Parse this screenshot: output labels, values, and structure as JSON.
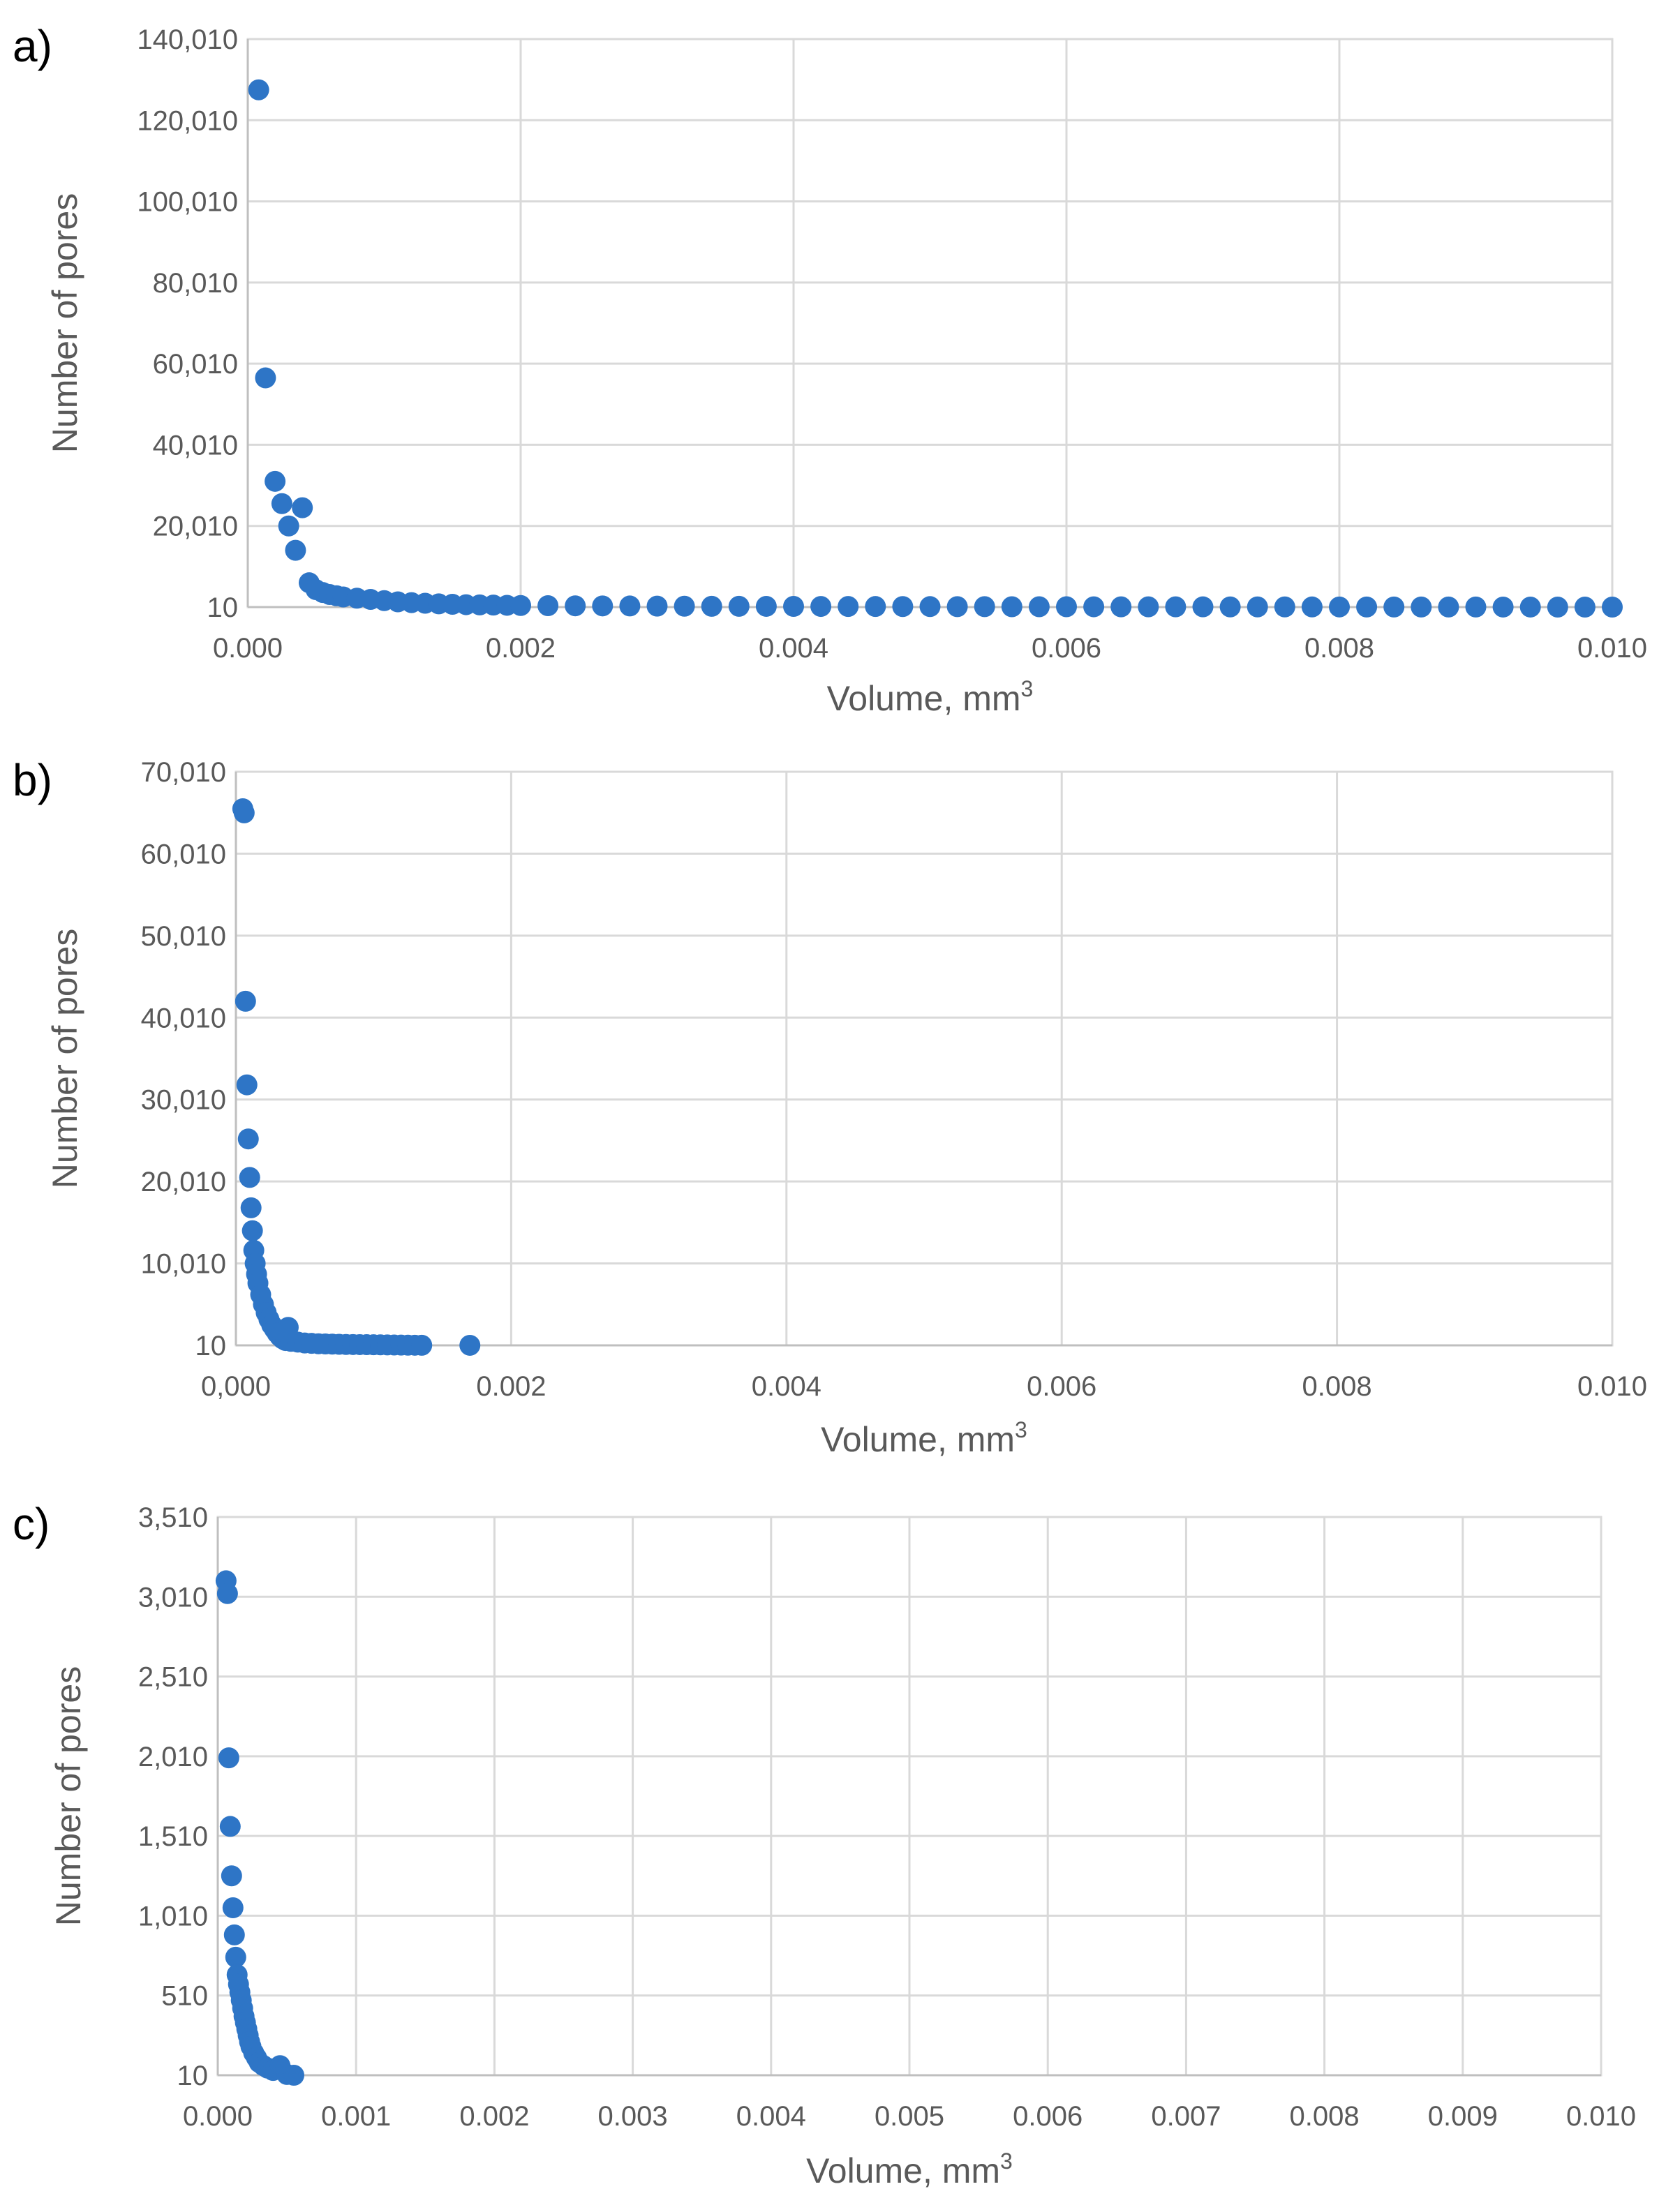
{
  "chart_data": [
    {
      "panel_label": "a)",
      "type": "scatter",
      "xlabel": "Volume, mm",
      "xlabel_superscript": "3",
      "ylabel": "Number of pores",
      "xlim": [
        0.0,
        0.01
      ],
      "ylim": [
        10,
        140010
      ],
      "x_ticks": [
        0.0,
        0.002,
        0.004,
        0.006,
        0.008,
        0.01
      ],
      "x_tick_labels": [
        "0.000",
        "0.002",
        "0.004",
        "0.006",
        "0.008",
        "0.010"
      ],
      "y_ticks": [
        10,
        20010,
        40010,
        60010,
        80010,
        100010,
        120010,
        140010
      ],
      "y_tick_labels": [
        "10",
        "20,010",
        "40,010",
        "60,010",
        "80,010",
        "100,010",
        "120,010",
        "140,010"
      ],
      "grid": true,
      "marker_color": "#2e75c6",
      "series": [
        {
          "x": [
            8e-05,
            0.00013,
            0.0002,
            0.00025,
            0.0003,
            0.00035,
            0.0004,
            0.00045,
            0.0005,
            0.00055,
            0.0006,
            0.00065,
            0.0007,
            0.0008,
            0.0009,
            0.001,
            0.0011,
            0.0012,
            0.0013,
            0.0014,
            0.0015,
            0.0016,
            0.0017,
            0.0018,
            0.0019,
            0.002,
            0.0022,
            0.0024,
            0.0026,
            0.0028,
            0.003,
            0.0032,
            0.0034,
            0.0036,
            0.0038,
            0.004,
            0.0042,
            0.0044,
            0.0046,
            0.0048,
            0.005,
            0.0052,
            0.0054,
            0.0056,
            0.0058,
            0.006,
            0.0062,
            0.0064,
            0.0066,
            0.0068,
            0.007,
            0.0072,
            0.0074,
            0.0076,
            0.0078,
            0.008,
            0.0082,
            0.0084,
            0.0086,
            0.0088,
            0.009,
            0.0092,
            0.0094,
            0.0096,
            0.0098,
            0.01
          ],
          "y": [
            127500,
            56500,
            31000,
            25500,
            20000,
            14000,
            24500,
            6000,
            4300,
            3600,
            3100,
            2800,
            2500,
            2200,
            1900,
            1600,
            1300,
            1100,
            950,
            800,
            700,
            600,
            550,
            500,
            450,
            400,
            350,
            320,
            300,
            280,
            250,
            230,
            210,
            200,
            190,
            180,
            170,
            160,
            150,
            140,
            130,
            120,
            110,
            100,
            95,
            90,
            85,
            80,
            75,
            70,
            65,
            60,
            55,
            50,
            45,
            40,
            35,
            30,
            30,
            25,
            25,
            20,
            20,
            15,
            15,
            10
          ]
        }
      ]
    },
    {
      "panel_label": "b)",
      "type": "scatter",
      "xlabel": "Volume, mm",
      "xlabel_superscript": "3",
      "ylabel": "Number of pores",
      "xlim": [
        0.0,
        0.01
      ],
      "ylim": [
        10,
        70010
      ],
      "x_ticks": [
        0.0,
        0.002,
        0.004,
        0.006,
        0.008,
        0.01
      ],
      "x_tick_labels": [
        "0,000",
        "0.002",
        "0.004",
        "0.006",
        "0.008",
        "0.010"
      ],
      "y_ticks": [
        10,
        10010,
        20010,
        30010,
        40010,
        50010,
        60010,
        70010
      ],
      "y_tick_labels": [
        "10",
        "10,010",
        "20,010",
        "30,010",
        "40,010",
        "50,010",
        "60,010",
        "70,010"
      ],
      "grid": true,
      "marker_color": "#2e75c6",
      "series": [
        {
          "x": [
            5e-05,
            6e-05,
            7e-05,
            8e-05,
            9e-05,
            0.0001,
            0.00011,
            0.00012,
            0.00013,
            0.00014,
            0.00015,
            0.00016,
            0.00018,
            0.0002,
            0.00022,
            0.00024,
            0.00026,
            0.00028,
            0.0003,
            0.00032,
            0.00034,
            0.00036,
            0.00038,
            0.0004,
            0.00045,
            0.0005,
            0.00055,
            0.0006,
            0.00065,
            0.0007,
            0.00075,
            0.0008,
            0.00085,
            0.0009,
            0.00095,
            0.001,
            0.00105,
            0.0011,
            0.00115,
            0.0012,
            0.00125,
            0.0013,
            0.00135,
            0.0017
          ],
          "y": [
            65500,
            65000,
            42000,
            31800,
            25200,
            20500,
            16800,
            14000,
            11600,
            10000,
            8700,
            7600,
            6200,
            5000,
            4000,
            3200,
            2500,
            2000,
            1500,
            1100,
            800,
            600,
            2200,
            500,
            400,
            300,
            250,
            200,
            180,
            160,
            140,
            120,
            110,
            100,
            90,
            80,
            70,
            60,
            50,
            40,
            30,
            25,
            20,
            15
          ]
        }
      ]
    },
    {
      "panel_label": "c)",
      "type": "scatter",
      "xlabel": "Volume, mm",
      "xlabel_superscript": "3",
      "ylabel": "Number of pores",
      "xlim": [
        0.0,
        0.01
      ],
      "ylim": [
        10,
        3510
      ],
      "x_ticks": [
        0.0,
        0.001,
        0.002,
        0.003,
        0.004,
        0.005,
        0.006,
        0.007,
        0.008,
        0.009,
        0.01
      ],
      "x_tick_labels": [
        "0.000",
        "0.001",
        "0.002",
        "0.003",
        "0.004",
        "0.005",
        "0.006",
        "0.007",
        "0.008",
        "0.009",
        "0.010"
      ],
      "y_ticks": [
        10,
        510,
        1010,
        1510,
        2010,
        2510,
        3010,
        3510
      ],
      "y_tick_labels": [
        "10",
        "510",
        "1,010",
        "1,510",
        "2,010",
        "2,510",
        "3,010",
        "3,510"
      ],
      "grid": true,
      "marker_color": "#2e75c6",
      "series": [
        {
          "x": [
            6e-05,
            7e-05,
            8e-05,
            9e-05,
            0.0001,
            0.00011,
            0.00012,
            0.00013,
            0.00014,
            0.00015,
            0.00016,
            0.00017,
            0.00018,
            0.00019,
            0.0002,
            0.00021,
            0.00022,
            0.00023,
            0.00024,
            0.00026,
            0.00028,
            0.0003,
            0.00033,
            0.00036,
            0.0004,
            0.00045,
            0.0005,
            0.00055
          ],
          "y": [
            3110,
            3030,
            2000,
            1570,
            1260,
            1060,
            890,
            750,
            640,
            580,
            530,
            480,
            430,
            380,
            340,
            300,
            260,
            220,
            190,
            150,
            120,
            90,
            70,
            55,
            40,
            70,
            15,
            10
          ]
        }
      ]
    }
  ]
}
